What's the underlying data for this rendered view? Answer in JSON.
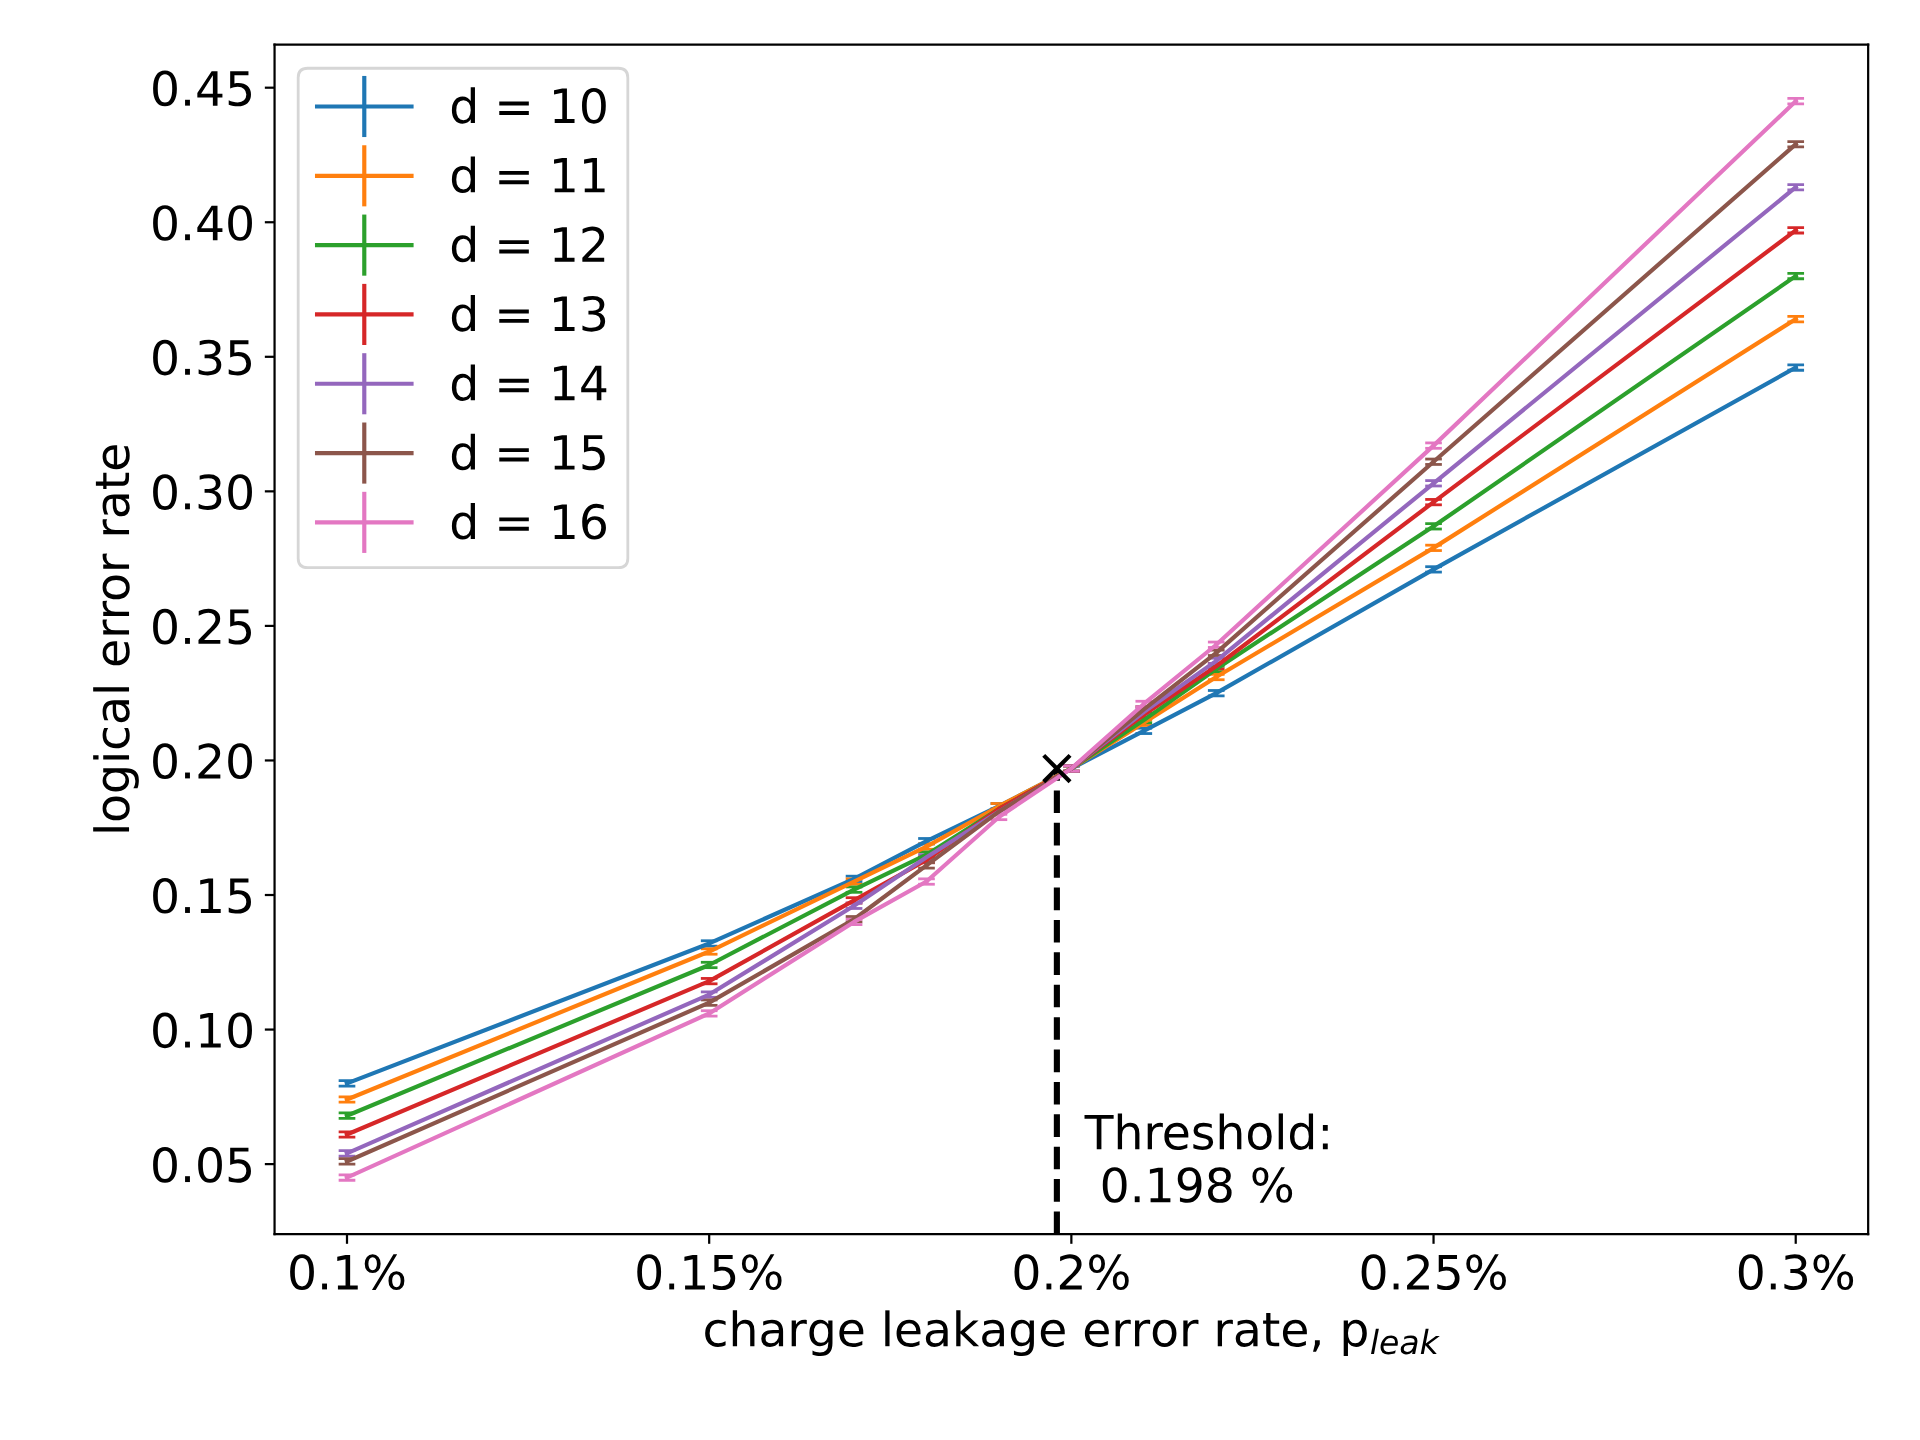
{
  "chart_data": {
    "type": "line",
    "xlabel": "charge leakage error rate, p$_{leak}$",
    "ylabel": "logical error rate",
    "x": [
      0.1,
      0.15,
      0.17,
      0.18,
      0.19,
      0.2,
      0.21,
      0.22,
      0.25,
      0.3
    ],
    "xlim": [
      0.09,
      0.31
    ],
    "xticks": [
      {
        "value": 0.1,
        "label": "0.1%"
      },
      {
        "value": 0.15,
        "label": "0.15%"
      },
      {
        "value": 0.2,
        "label": "0.2%"
      },
      {
        "value": 0.25,
        "label": "0.25%"
      },
      {
        "value": 0.3,
        "label": "0.3%"
      }
    ],
    "ylim": [
      0.024,
      0.466
    ],
    "yticks": [
      {
        "value": 0.05,
        "label": "0.05"
      },
      {
        "value": 0.1,
        "label": "0.10"
      },
      {
        "value": 0.15,
        "label": "0.15"
      },
      {
        "value": 0.2,
        "label": "0.20"
      },
      {
        "value": 0.25,
        "label": "0.25"
      },
      {
        "value": 0.3,
        "label": "0.30"
      },
      {
        "value": 0.35,
        "label": "0.35"
      },
      {
        "value": 0.4,
        "label": "0.40"
      },
      {
        "value": 0.45,
        "label": "0.45"
      }
    ],
    "grid": false,
    "legend": "top left",
    "marker": "none",
    "line_style": "solid",
    "series": [
      {
        "name": "d = 10",
        "color": "#1f77b4",
        "values": [
          0.08,
          0.132,
          0.156,
          0.17,
          0.183,
          0.197,
          0.211,
          0.225,
          0.271,
          0.346
        ],
        "errors": [
          0.001,
          0.001,
          0.001,
          0.001,
          0.001,
          0.001,
          0.001,
          0.001,
          0.001,
          0.001
        ]
      },
      {
        "name": "d = 11",
        "color": "#ff7f0e",
        "values": [
          0.074,
          0.129,
          0.155,
          0.168,
          0.183,
          0.197,
          0.214,
          0.231,
          0.279,
          0.364
        ],
        "errors": [
          0.001,
          0.001,
          0.001,
          0.001,
          0.001,
          0.001,
          0.001,
          0.001,
          0.001,
          0.001
        ]
      },
      {
        "name": "d = 12",
        "color": "#2ca02c",
        "values": [
          0.068,
          0.124,
          0.152,
          0.165,
          0.182,
          0.197,
          0.215,
          0.234,
          0.287,
          0.38
        ],
        "errors": [
          0.001,
          0.001,
          0.001,
          0.001,
          null,
          0.001,
          0.001,
          0.001,
          0.001,
          0.001
        ]
      },
      {
        "name": "d = 13",
        "color": "#d62728",
        "values": [
          0.061,
          0.118,
          0.148,
          0.163,
          0.182,
          0.197,
          0.217,
          0.235,
          0.296,
          0.397
        ],
        "errors": [
          0.001,
          0.001,
          0.001,
          0.001,
          null,
          0.001,
          0.001,
          0.001,
          0.001,
          0.001
        ]
      },
      {
        "name": "d = 14",
        "color": "#9467bd",
        "values": [
          0.054,
          0.113,
          0.146,
          0.164,
          0.181,
          0.197,
          0.218,
          0.237,
          0.303,
          0.413
        ],
        "errors": [
          0.001,
          0.001,
          0.001,
          0.001,
          null,
          0.001,
          0.001,
          0.001,
          0.001,
          0.001
        ]
      },
      {
        "name": "d = 15",
        "color": "#8c564b",
        "values": [
          0.051,
          0.11,
          0.141,
          0.161,
          0.181,
          0.197,
          0.219,
          0.24,
          0.311,
          0.429
        ],
        "errors": [
          0.001,
          0.001,
          0.001,
          0.001,
          null,
          0.001,
          0.001,
          0.001,
          0.001,
          0.001
        ]
      },
      {
        "name": "d = 16",
        "color": "#e377c2",
        "values": [
          0.045,
          0.106,
          0.14,
          0.155,
          0.179,
          0.197,
          0.221,
          0.243,
          0.317,
          0.445
        ],
        "errors": [
          0.001,
          0.001,
          0.001,
          0.001,
          0.001,
          0.001,
          0.001,
          0.001,
          0.001,
          0.001
        ]
      },
      {
        "type": "scatter",
        "color": "#000000",
        "marker": "cross",
        "x": [
          0.198
        ],
        "values": [
          0.197
        ]
      }
    ],
    "ref_lines": [
      {
        "axis": "x",
        "value": 0.198,
        "label": "Threshold:\n 0.198 %",
        "color": "#000000",
        "line_style": "dashed"
      }
    ]
  }
}
